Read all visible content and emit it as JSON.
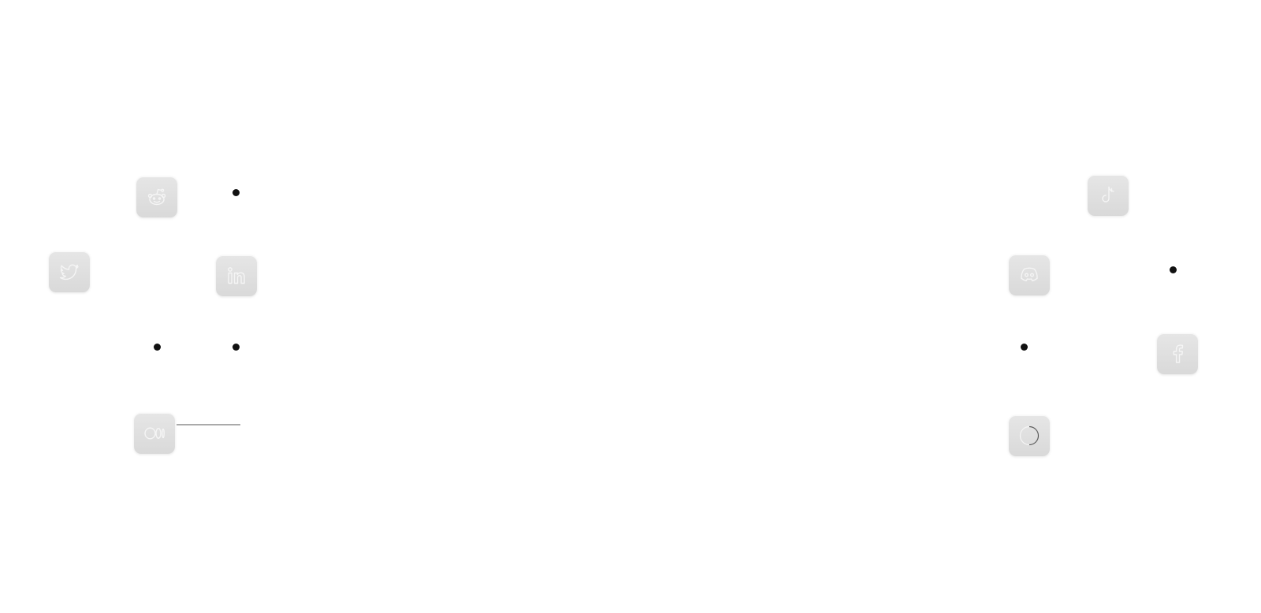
{
  "social_nodes": [
    {
      "id": "reddit",
      "label": "Reddit",
      "icon": "reddit-icon"
    },
    {
      "id": "twitter",
      "label": "Twitter",
      "icon": "twitter-icon"
    },
    {
      "id": "linkedin",
      "label": "LinkedIn",
      "icon": "linkedin-icon"
    },
    {
      "id": "medium",
      "label": "Medium",
      "icon": "medium-icon"
    },
    {
      "id": "tiktok",
      "label": "TikTok",
      "icon": "tiktok-icon"
    },
    {
      "id": "discord",
      "label": "Discord",
      "icon": "discord-icon"
    },
    {
      "id": "facebook",
      "label": "Facebook",
      "icon": "facebook-icon"
    },
    {
      "id": "threads",
      "label": "Threads",
      "icon": "circle-icon"
    }
  ],
  "colors": {
    "background": "#ffffff",
    "grid_line": "#cfcfcf",
    "tile_fill": "#dedede",
    "icon_stroke": "#f5f5f5",
    "dot": "#111111"
  }
}
